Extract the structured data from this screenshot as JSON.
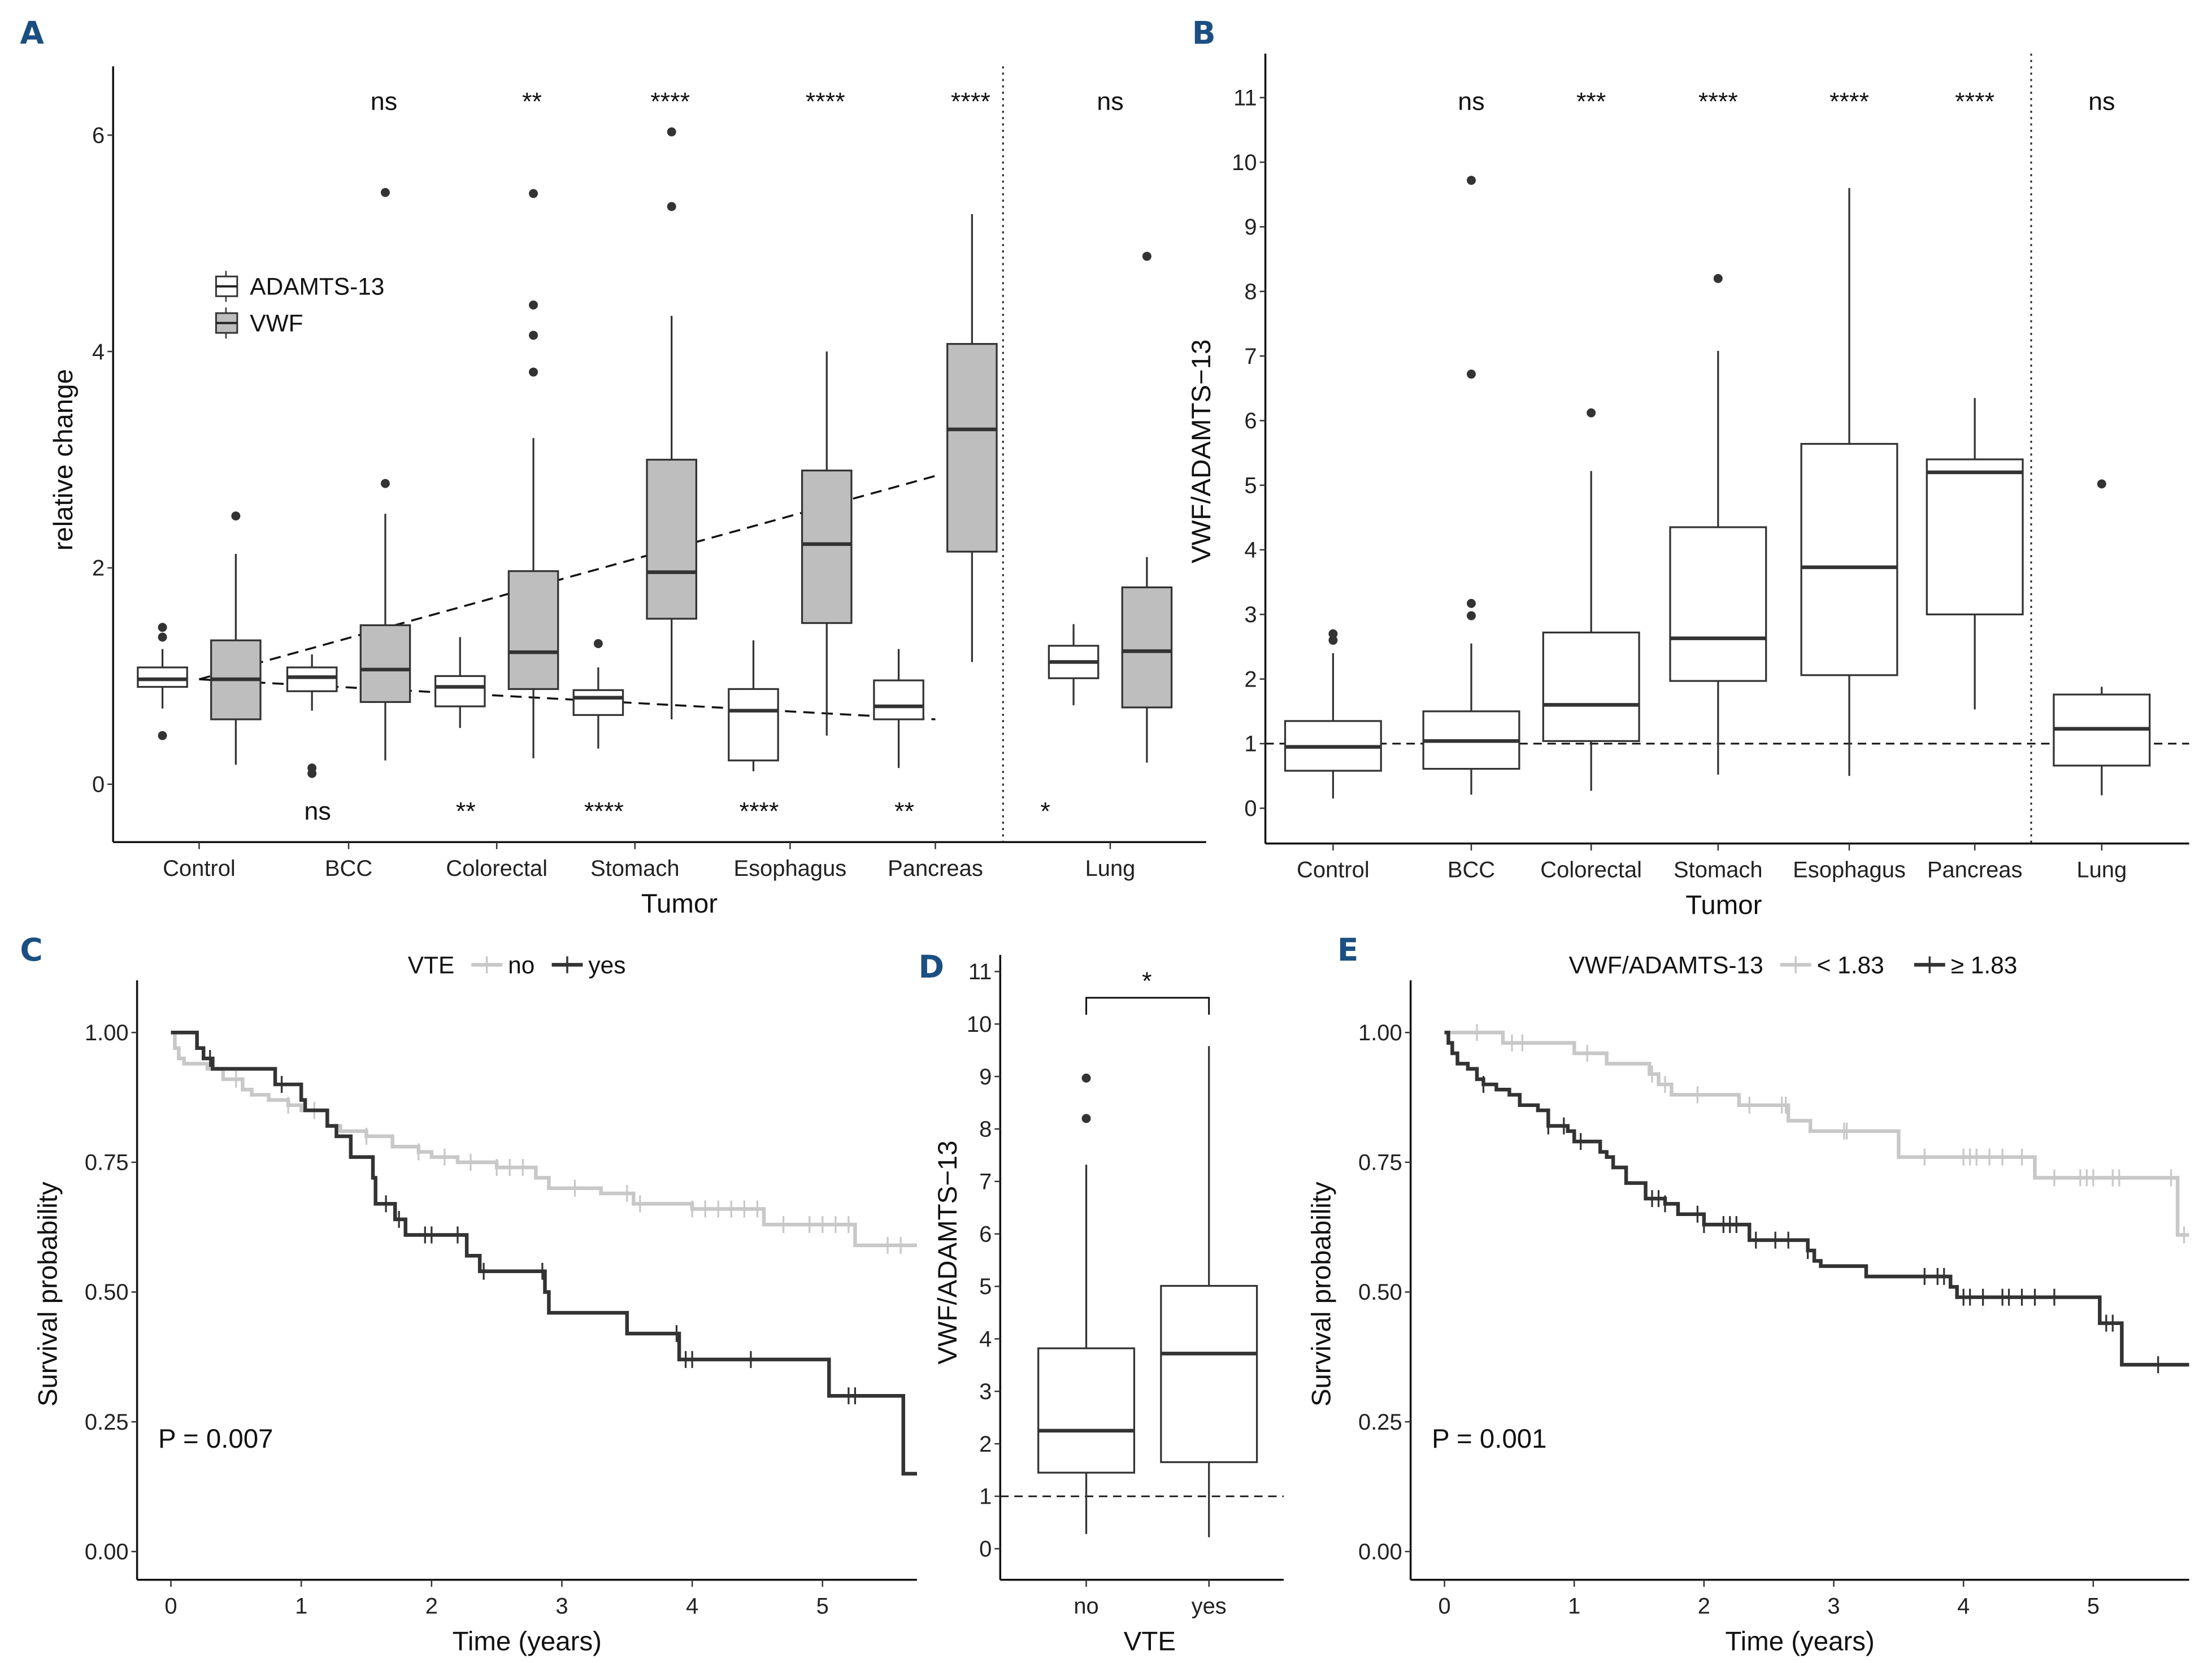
{
  "figure": {
    "panels": [
      "A",
      "B",
      "C",
      "D",
      "E"
    ]
  },
  "colors": {
    "panel_letter": "#1b4f82",
    "vwf_fill": "#bebebe",
    "box_stroke": "#333333",
    "km_no": "#c8c8c8",
    "km_yes": "#333333"
  },
  "chart_data": [
    {
      "panel": "A",
      "type": "boxplot",
      "xlabel": "Tumor",
      "ylabel": "relative change",
      "ylim": [
        -0.55,
        6.6
      ],
      "yticks": [
        0,
        2,
        4,
        6
      ],
      "categories": [
        "Control",
        "BCC",
        "Colorectal",
        "Stomach",
        "Esophagus",
        "Pancreas",
        "Lung"
      ],
      "legend": {
        "placement": "top-left",
        "entries": [
          "ADAMTS-13",
          "VWF"
        ]
      },
      "series": [
        {
          "name": "ADAMTS-13",
          "boxes": [
            {
              "q1": 0.9,
              "median": 0.97,
              "q3": 1.08,
              "lo": 0.7,
              "hi": 1.25,
              "outliers": [
                1.45,
                1.36,
                0.45
              ]
            },
            {
              "q1": 0.86,
              "median": 0.99,
              "q3": 1.08,
              "lo": 0.68,
              "hi": 1.2,
              "outliers": [
                0.15,
                0.1
              ]
            },
            {
              "q1": 0.72,
              "median": 0.9,
              "q3": 1.0,
              "lo": 0.52,
              "hi": 1.36,
              "outliers": []
            },
            {
              "q1": 0.64,
              "median": 0.8,
              "q3": 0.87,
              "lo": 0.33,
              "hi": 1.08,
              "outliers": [
                1.3
              ]
            },
            {
              "q1": 0.22,
              "median": 0.68,
              "q3": 0.88,
              "lo": 0.12,
              "hi": 1.33,
              "outliers": []
            },
            {
              "q1": 0.6,
              "median": 0.72,
              "q3": 0.96,
              "lo": 0.15,
              "hi": 1.25,
              "outliers": []
            },
            {
              "q1": 0.98,
              "median": 1.13,
              "q3": 1.28,
              "lo": 0.73,
              "hi": 1.48,
              "outliers": []
            }
          ],
          "significance": [
            "",
            "ns",
            "**",
            "****",
            "****",
            "**",
            "*"
          ]
        },
        {
          "name": "VWF",
          "boxes": [
            {
              "q1": 0.6,
              "median": 0.97,
              "q3": 1.33,
              "lo": 0.18,
              "hi": 2.13,
              "outliers": [
                2.48
              ]
            },
            {
              "q1": 0.76,
              "median": 1.06,
              "q3": 1.47,
              "lo": 0.22,
              "hi": 2.5,
              "outliers": [
                2.78,
                5.47
              ]
            },
            {
              "q1": 0.88,
              "median": 1.22,
              "q3": 1.97,
              "lo": 0.24,
              "hi": 3.2,
              "outliers": [
                3.81,
                4.15,
                4.43,
                5.46
              ]
            },
            {
              "q1": 1.53,
              "median": 1.96,
              "q3": 3.0,
              "lo": 0.6,
              "hi": 4.33,
              "outliers": [
                5.34,
                6.03
              ]
            },
            {
              "q1": 1.49,
              "median": 2.22,
              "q3": 2.9,
              "lo": 0.45,
              "hi": 4.0,
              "outliers": []
            },
            {
              "q1": 2.15,
              "median": 3.28,
              "q3": 4.07,
              "lo": 1.13,
              "hi": 5.27,
              "outliers": []
            },
            {
              "q1": 0.71,
              "median": 1.23,
              "q3": 1.82,
              "lo": 0.2,
              "hi": 2.1,
              "outliers": [
                4.88
              ]
            }
          ],
          "significance": [
            "",
            "ns",
            "**",
            "****",
            "****",
            "****",
            "ns"
          ]
        }
      ],
      "trend_lines": [
        {
          "name": "VWF trend",
          "from_category": "Control",
          "to_category": "Pancreas",
          "from": 0.97,
          "to": 2.85,
          "style": "dashed"
        },
        {
          "name": "ADAMTS-13 trend",
          "from_category": "Control",
          "to_category": "Pancreas",
          "from": 0.97,
          "to": 0.6,
          "style": "dashed"
        }
      ],
      "separator_after": "Pancreas"
    },
    {
      "panel": "B",
      "type": "boxplot",
      "xlabel": "Tumor",
      "ylabel": "VWF/ADAMTS−13",
      "ylim": [
        -0.55,
        11.5
      ],
      "yticks": [
        0,
        1,
        2,
        3,
        4,
        5,
        6,
        7,
        8,
        9,
        10,
        11
      ],
      "categories": [
        "Control",
        "BCC",
        "Colorectal",
        "Stomach",
        "Esophagus",
        "Pancreas",
        "Lung"
      ],
      "boxes": [
        {
          "q1": 0.58,
          "median": 0.95,
          "q3": 1.35,
          "lo": 0.15,
          "hi": 2.4,
          "outliers": [
            2.7,
            2.6
          ]
        },
        {
          "q1": 0.61,
          "median": 1.04,
          "q3": 1.5,
          "lo": 0.21,
          "hi": 2.55,
          "outliers": [
            9.72,
            6.72,
            3.17,
            2.98
          ]
        },
        {
          "q1": 1.04,
          "median": 1.6,
          "q3": 2.72,
          "lo": 0.27,
          "hi": 5.22,
          "outliers": [
            6.12
          ]
        },
        {
          "q1": 1.97,
          "median": 2.63,
          "q3": 4.35,
          "lo": 0.52,
          "hi": 7.08,
          "outliers": [
            8.2
          ]
        },
        {
          "q1": 2.06,
          "median": 3.73,
          "q3": 5.64,
          "lo": 0.5,
          "hi": 9.6,
          "outliers": []
        },
        {
          "q1": 3.0,
          "median": 5.2,
          "q3": 5.4,
          "lo": 1.53,
          "hi": 6.35,
          "outliers": []
        },
        {
          "q1": 0.66,
          "median": 1.23,
          "q3": 1.76,
          "lo": 0.2,
          "hi": 1.88,
          "outliers": [
            5.02
          ]
        }
      ],
      "significance": [
        "",
        "ns",
        "***",
        "****",
        "****",
        "****",
        "ns"
      ],
      "reference_line": 1,
      "separator_after": "Pancreas"
    },
    {
      "panel": "C",
      "type": "line",
      "subtype": "kaplan-meier",
      "xlabel": "Time (years)",
      "ylabel": "Survival probability",
      "xlim": [
        -0.25,
        5.7
      ],
      "ylim": [
        -0.05,
        1.05
      ],
      "xticks": [
        0,
        1,
        2,
        3,
        4,
        5
      ],
      "yticks": [
        "0.00",
        "0.25",
        "0.50",
        "0.75",
        "1.00"
      ],
      "legend": {
        "title": "VTE",
        "placement": "top",
        "entries": [
          "no",
          "yes"
        ]
      },
      "annotation": "P = 0.007",
      "series": [
        {
          "name": "no",
          "steps": [
            [
              0,
              1.0
            ],
            [
              0.03,
              0.97
            ],
            [
              0.06,
              0.95
            ],
            [
              0.1,
              0.94
            ],
            [
              0.28,
              0.93
            ],
            [
              0.4,
              0.91
            ],
            [
              0.55,
              0.89
            ],
            [
              0.62,
              0.88
            ],
            [
              0.75,
              0.87
            ],
            [
              0.9,
              0.86
            ],
            [
              1.0,
              0.85
            ],
            [
              1.2,
              0.82
            ],
            [
              1.3,
              0.81
            ],
            [
              1.5,
              0.8
            ],
            [
              1.7,
              0.78
            ],
            [
              1.9,
              0.77
            ],
            [
              2.0,
              0.76
            ],
            [
              2.2,
              0.75
            ],
            [
              2.5,
              0.74
            ],
            [
              2.8,
              0.72
            ],
            [
              2.9,
              0.7
            ],
            [
              3.3,
              0.69
            ],
            [
              3.55,
              0.67
            ],
            [
              4.0,
              0.66
            ],
            [
              4.55,
              0.63
            ],
            [
              5.25,
              0.59
            ],
            [
              5.7,
              0.59
            ]
          ],
          "censor_times": [
            0.5,
            0.9,
            1.1,
            1.5,
            1.9,
            2.1,
            2.3,
            2.5,
            2.6,
            2.7,
            3.1,
            3.5,
            3.6,
            4.0,
            4.1,
            4.2,
            4.3,
            4.4,
            4.5,
            4.7,
            4.9,
            5.0,
            5.1,
            5.2,
            5.5,
            5.6
          ]
        },
        {
          "name": "yes",
          "steps": [
            [
              0,
              1.0
            ],
            [
              0.2,
              0.97
            ],
            [
              0.25,
              0.95
            ],
            [
              0.32,
              0.93
            ],
            [
              0.8,
              0.9
            ],
            [
              1.0,
              0.87
            ],
            [
              1.03,
              0.85
            ],
            [
              1.2,
              0.82
            ],
            [
              1.27,
              0.8
            ],
            [
              1.38,
              0.76
            ],
            [
              1.55,
              0.72
            ],
            [
              1.57,
              0.67
            ],
            [
              1.72,
              0.64
            ],
            [
              1.8,
              0.61
            ],
            [
              2.27,
              0.57
            ],
            [
              2.37,
              0.54
            ],
            [
              2.87,
              0.5
            ],
            [
              2.9,
              0.46
            ],
            [
              3.5,
              0.42
            ],
            [
              3.9,
              0.37
            ],
            [
              5.05,
              0.3
            ],
            [
              5.62,
              0.15
            ],
            [
              5.7,
              0.15
            ]
          ],
          "censor_times": [
            0.3,
            0.85,
            1.65,
            1.75,
            1.95,
            2.0,
            2.2,
            2.4,
            2.85,
            3.88,
            3.95,
            4.0,
            4.45,
            5.2,
            5.25
          ]
        }
      ]
    },
    {
      "panel": "D",
      "type": "boxplot",
      "xlabel": "VTE",
      "ylabel": "VWF/ADAMTS−13",
      "ylim": [
        -0.55,
        11.5
      ],
      "yticks": [
        0,
        1,
        2,
        3,
        4,
        5,
        6,
        7,
        8,
        9,
        10,
        11
      ],
      "categories": [
        "no",
        "yes"
      ],
      "boxes": [
        {
          "q1": 1.45,
          "median": 2.25,
          "q3": 3.82,
          "lo": 0.28,
          "hi": 7.32,
          "outliers": [
            8.97,
            8.2
          ]
        },
        {
          "q1": 1.65,
          "median": 3.72,
          "q3": 5.01,
          "lo": 0.22,
          "hi": 9.58,
          "outliers": []
        }
      ],
      "reference_line": 1,
      "comparison": {
        "label": "*",
        "between": [
          "no",
          "yes"
        ],
        "y": 10.5
      }
    },
    {
      "panel": "E",
      "type": "line",
      "subtype": "kaplan-meier",
      "xlabel": "Time (years)",
      "ylabel": "Survival probability",
      "xlim": [
        -0.25,
        5.7
      ],
      "ylim": [
        -0.05,
        1.05
      ],
      "xticks": [
        0,
        1,
        2,
        3,
        4,
        5
      ],
      "yticks": [
        "0.00",
        "0.25",
        "0.50",
        "0.75",
        "1.00"
      ],
      "legend": {
        "title": "VWF/ADAMTS-13",
        "placement": "top",
        "entries": [
          "< 1.83",
          "≥ 1.83"
        ]
      },
      "annotation": "P = 0.001",
      "series": [
        {
          "name": "< 1.83",
          "steps": [
            [
              0,
              1.0
            ],
            [
              0.45,
              0.98
            ],
            [
              1.0,
              0.96
            ],
            [
              1.25,
              0.94
            ],
            [
              1.58,
              0.92
            ],
            [
              1.65,
              0.9
            ],
            [
              1.75,
              0.88
            ],
            [
              2.27,
              0.86
            ],
            [
              2.65,
              0.83
            ],
            [
              2.82,
              0.81
            ],
            [
              3.5,
              0.76
            ],
            [
              4.55,
              0.72
            ],
            [
              5.65,
              0.61
            ],
            [
              5.7,
              0.61
            ]
          ],
          "censor_times": [
            0.25,
            0.52,
            0.6,
            1.1,
            1.6,
            1.7,
            1.95,
            2.35,
            2.6,
            2.63,
            3.08,
            3.1,
            3.7,
            4.0,
            4.05,
            4.1,
            4.2,
            4.3,
            4.45,
            4.7,
            4.9,
            4.95,
            5.0,
            5.15,
            5.2,
            5.6,
            5.7
          ]
        },
        {
          "name": "≥ 1.83",
          "steps": [
            [
              0,
              1.0
            ],
            [
              0.03,
              0.98
            ],
            [
              0.06,
              0.96
            ],
            [
              0.1,
              0.94
            ],
            [
              0.18,
              0.93
            ],
            [
              0.25,
              0.91
            ],
            [
              0.3,
              0.9
            ],
            [
              0.4,
              0.89
            ],
            [
              0.5,
              0.88
            ],
            [
              0.58,
              0.86
            ],
            [
              0.72,
              0.85
            ],
            [
              0.8,
              0.82
            ],
            [
              0.95,
              0.81
            ],
            [
              1.0,
              0.79
            ],
            [
              1.2,
              0.77
            ],
            [
              1.25,
              0.76
            ],
            [
              1.3,
              0.74
            ],
            [
              1.4,
              0.71
            ],
            [
              1.55,
              0.68
            ],
            [
              1.7,
              0.67
            ],
            [
              1.8,
              0.65
            ],
            [
              2.0,
              0.63
            ],
            [
              2.35,
              0.6
            ],
            [
              2.8,
              0.58
            ],
            [
              2.85,
              0.56
            ],
            [
              2.9,
              0.55
            ],
            [
              3.25,
              0.53
            ],
            [
              3.9,
              0.51
            ],
            [
              3.95,
              0.49
            ],
            [
              5.05,
              0.44
            ],
            [
              5.22,
              0.36
            ],
            [
              5.7,
              0.36
            ]
          ],
          "censor_times": [
            0.3,
            0.8,
            0.92,
            1.05,
            1.6,
            1.65,
            1.7,
            1.95,
            2.0,
            2.15,
            2.2,
            2.25,
            2.4,
            2.55,
            2.65,
            2.8,
            3.7,
            3.8,
            3.85,
            4.0,
            4.05,
            4.15,
            4.3,
            4.35,
            4.45,
            4.55,
            4.7,
            5.1,
            5.15,
            5.5
          ]
        }
      ]
    }
  ]
}
